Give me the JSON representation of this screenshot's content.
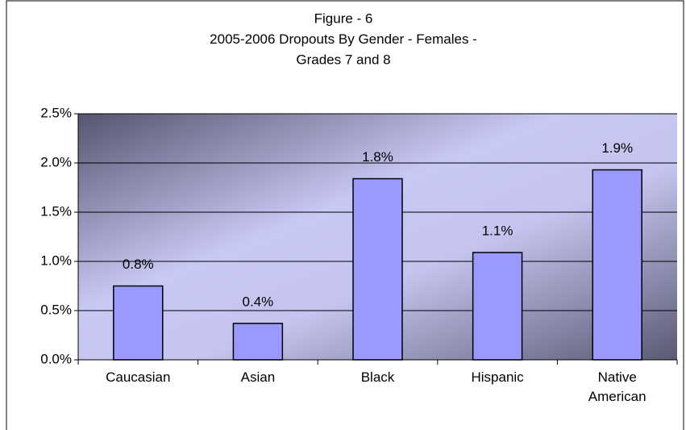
{
  "chart_data": {
    "type": "bar",
    "title": [
      "Figure - 6",
      "2005-2006 Dropouts By Gender - Females -",
      "Grades 7 and 8"
    ],
    "categories": [
      "Caucasian",
      "Asian",
      "Black",
      "Hispanic",
      "Native American"
    ],
    "values": [
      0.75,
      0.37,
      1.84,
      1.09,
      1.93
    ],
    "value_labels": [
      "0.8%",
      "0.4%",
      "1.8%",
      "1.1%",
      "1.9%"
    ],
    "color": "#9999ff",
    "ylim": [
      0,
      2.5
    ],
    "yticks": [
      {
        "value": 0,
        "label": "0.0%"
      },
      {
        "value": 0.5,
        "label": "0.5%"
      },
      {
        "value": 1,
        "label": "1.0%"
      },
      {
        "value": 1.5,
        "label": "1.5%"
      },
      {
        "value": 2,
        "label": "2.0%"
      },
      {
        "value": 2.5,
        "label": "2.5%"
      }
    ],
    "grid": true
  }
}
